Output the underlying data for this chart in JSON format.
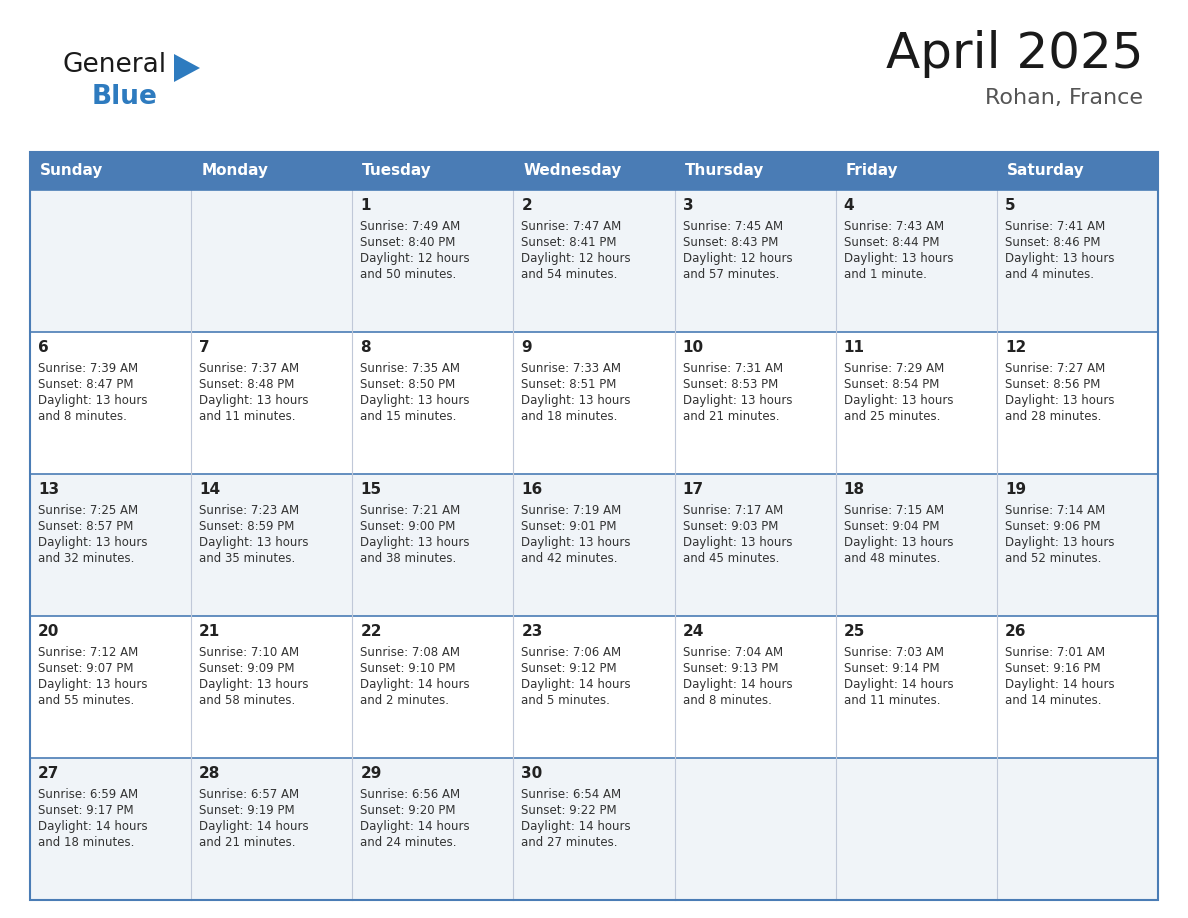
{
  "title": "April 2025",
  "subtitle": "Rohan, France",
  "header_bg": "#4a7cb5",
  "header_text_color": "#ffffff",
  "cell_bg_light": "#f0f4f8",
  "cell_bg_white": "#ffffff",
  "border_color": "#4a7cb5",
  "row_divider_color": "#4a7cb5",
  "col_divider_color": "#c0c8d8",
  "day_names": [
    "Sunday",
    "Monday",
    "Tuesday",
    "Wednesday",
    "Thursday",
    "Friday",
    "Saturday"
  ],
  "calendar": [
    [
      {
        "day": "",
        "sunrise": "",
        "sunset": "",
        "daylight": ""
      },
      {
        "day": "",
        "sunrise": "",
        "sunset": "",
        "daylight": ""
      },
      {
        "day": "1",
        "sunrise": "7:49 AM",
        "sunset": "8:40 PM",
        "daylight": "12 hours\nand 50 minutes."
      },
      {
        "day": "2",
        "sunrise": "7:47 AM",
        "sunset": "8:41 PM",
        "daylight": "12 hours\nand 54 minutes."
      },
      {
        "day": "3",
        "sunrise": "7:45 AM",
        "sunset": "8:43 PM",
        "daylight": "12 hours\nand 57 minutes."
      },
      {
        "day": "4",
        "sunrise": "7:43 AM",
        "sunset": "8:44 PM",
        "daylight": "13 hours\nand 1 minute."
      },
      {
        "day": "5",
        "sunrise": "7:41 AM",
        "sunset": "8:46 PM",
        "daylight": "13 hours\nand 4 minutes."
      }
    ],
    [
      {
        "day": "6",
        "sunrise": "7:39 AM",
        "sunset": "8:47 PM",
        "daylight": "13 hours\nand 8 minutes."
      },
      {
        "day": "7",
        "sunrise": "7:37 AM",
        "sunset": "8:48 PM",
        "daylight": "13 hours\nand 11 minutes."
      },
      {
        "day": "8",
        "sunrise": "7:35 AM",
        "sunset": "8:50 PM",
        "daylight": "13 hours\nand 15 minutes."
      },
      {
        "day": "9",
        "sunrise": "7:33 AM",
        "sunset": "8:51 PM",
        "daylight": "13 hours\nand 18 minutes."
      },
      {
        "day": "10",
        "sunrise": "7:31 AM",
        "sunset": "8:53 PM",
        "daylight": "13 hours\nand 21 minutes."
      },
      {
        "day": "11",
        "sunrise": "7:29 AM",
        "sunset": "8:54 PM",
        "daylight": "13 hours\nand 25 minutes."
      },
      {
        "day": "12",
        "sunrise": "7:27 AM",
        "sunset": "8:56 PM",
        "daylight": "13 hours\nand 28 minutes."
      }
    ],
    [
      {
        "day": "13",
        "sunrise": "7:25 AM",
        "sunset": "8:57 PM",
        "daylight": "13 hours\nand 32 minutes."
      },
      {
        "day": "14",
        "sunrise": "7:23 AM",
        "sunset": "8:59 PM",
        "daylight": "13 hours\nand 35 minutes."
      },
      {
        "day": "15",
        "sunrise": "7:21 AM",
        "sunset": "9:00 PM",
        "daylight": "13 hours\nand 38 minutes."
      },
      {
        "day": "16",
        "sunrise": "7:19 AM",
        "sunset": "9:01 PM",
        "daylight": "13 hours\nand 42 minutes."
      },
      {
        "day": "17",
        "sunrise": "7:17 AM",
        "sunset": "9:03 PM",
        "daylight": "13 hours\nand 45 minutes."
      },
      {
        "day": "18",
        "sunrise": "7:15 AM",
        "sunset": "9:04 PM",
        "daylight": "13 hours\nand 48 minutes."
      },
      {
        "day": "19",
        "sunrise": "7:14 AM",
        "sunset": "9:06 PM",
        "daylight": "13 hours\nand 52 minutes."
      }
    ],
    [
      {
        "day": "20",
        "sunrise": "7:12 AM",
        "sunset": "9:07 PM",
        "daylight": "13 hours\nand 55 minutes."
      },
      {
        "day": "21",
        "sunrise": "7:10 AM",
        "sunset": "9:09 PM",
        "daylight": "13 hours\nand 58 minutes."
      },
      {
        "day": "22",
        "sunrise": "7:08 AM",
        "sunset": "9:10 PM",
        "daylight": "14 hours\nand 2 minutes."
      },
      {
        "day": "23",
        "sunrise": "7:06 AM",
        "sunset": "9:12 PM",
        "daylight": "14 hours\nand 5 minutes."
      },
      {
        "day": "24",
        "sunrise": "7:04 AM",
        "sunset": "9:13 PM",
        "daylight": "14 hours\nand 8 minutes."
      },
      {
        "day": "25",
        "sunrise": "7:03 AM",
        "sunset": "9:14 PM",
        "daylight": "14 hours\nand 11 minutes."
      },
      {
        "day": "26",
        "sunrise": "7:01 AM",
        "sunset": "9:16 PM",
        "daylight": "14 hours\nand 14 minutes."
      }
    ],
    [
      {
        "day": "27",
        "sunrise": "6:59 AM",
        "sunset": "9:17 PM",
        "daylight": "14 hours\nand 18 minutes."
      },
      {
        "day": "28",
        "sunrise": "6:57 AM",
        "sunset": "9:19 PM",
        "daylight": "14 hours\nand 21 minutes."
      },
      {
        "day": "29",
        "sunrise": "6:56 AM",
        "sunset": "9:20 PM",
        "daylight": "14 hours\nand 24 minutes."
      },
      {
        "day": "30",
        "sunrise": "6:54 AM",
        "sunset": "9:22 PM",
        "daylight": "14 hours\nand 27 minutes."
      },
      {
        "day": "",
        "sunrise": "",
        "sunset": "",
        "daylight": ""
      },
      {
        "day": "",
        "sunrise": "",
        "sunset": "",
        "daylight": ""
      },
      {
        "day": "",
        "sunrise": "",
        "sunset": "",
        "daylight": ""
      }
    ]
  ],
  "logo_general_color": "#1a1a1a",
  "logo_blue_color": "#2e7bbf",
  "logo_triangle_color": "#2e7bbf",
  "title_color": "#1a1a1a",
  "subtitle_color": "#555555",
  "title_fontsize": 36,
  "subtitle_fontsize": 16,
  "header_fontsize": 11,
  "day_num_fontsize": 11,
  "cell_text_fontsize": 8.5
}
